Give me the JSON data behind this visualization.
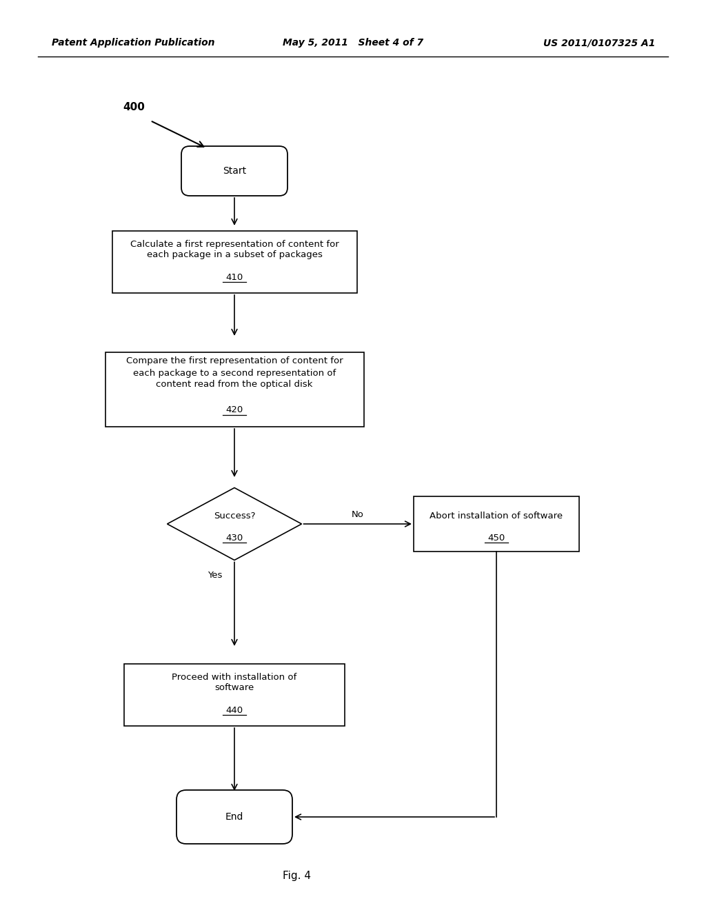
{
  "title_left": "Patent Application Publication",
  "title_mid": "May 5, 2011   Sheet 4 of 7",
  "title_right": "US 2011/0107325 A1",
  "fig_label": "Fig. 4",
  "diagram_number": "400",
  "background_color": "#ffffff",
  "header_font_size": 10,
  "body_font_size": 9.5,
  "fig_width": 10.24,
  "fig_height": 13.2,
  "dpi": 100
}
